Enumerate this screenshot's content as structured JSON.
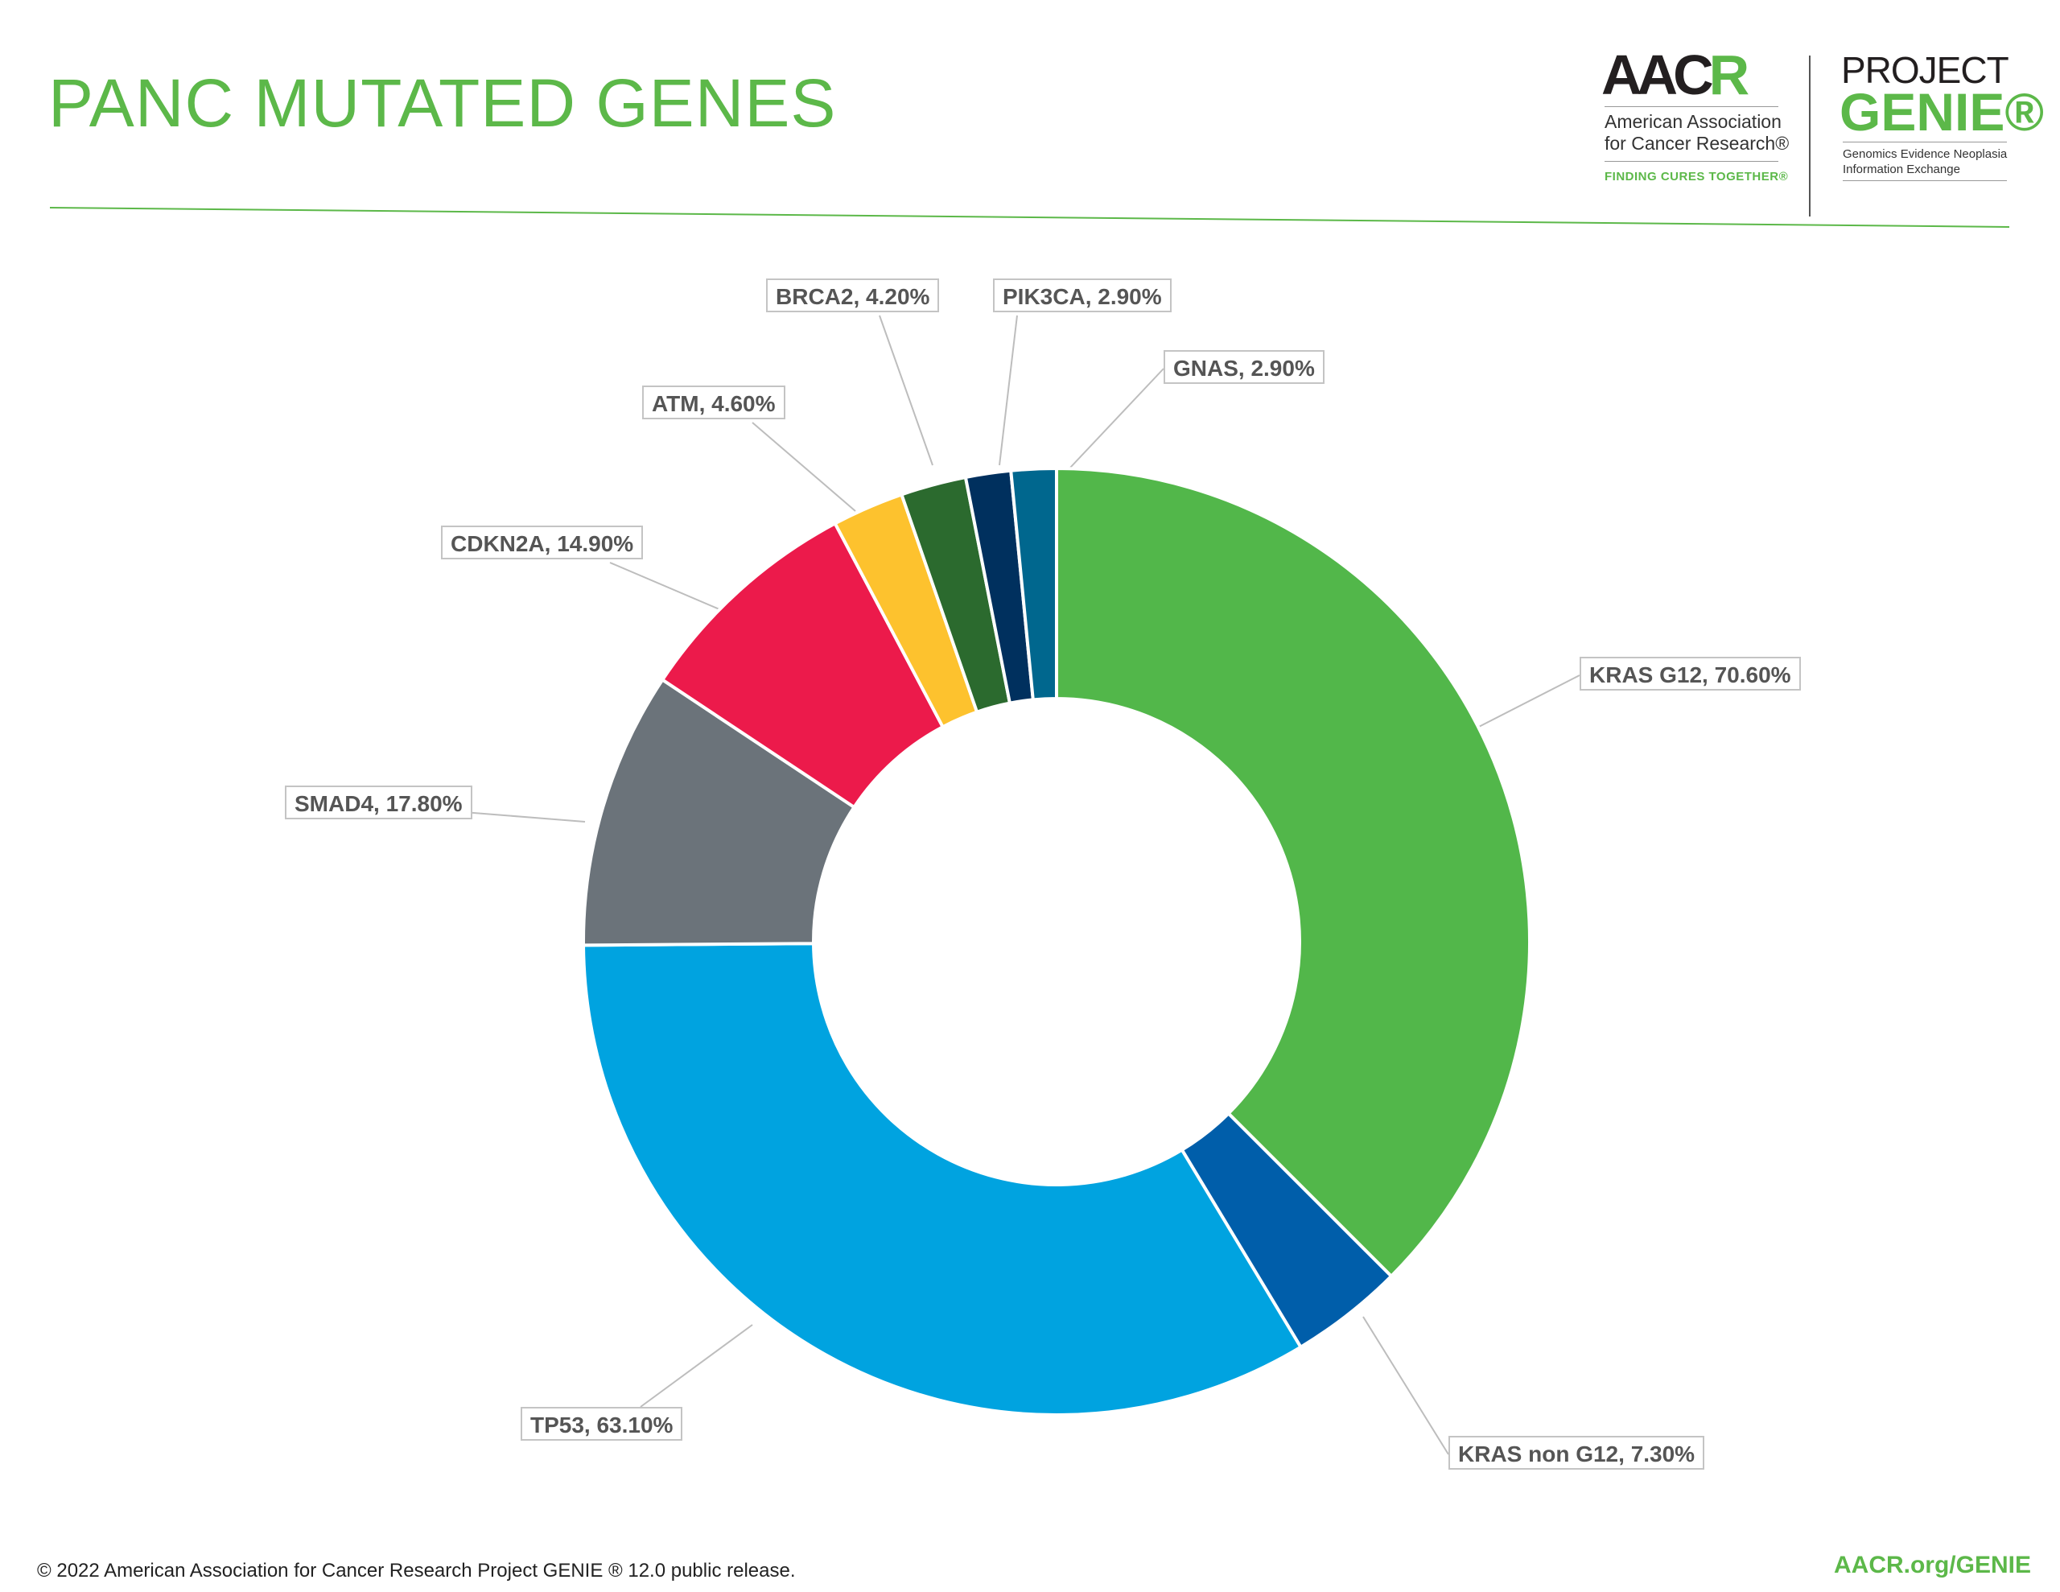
{
  "header": {
    "title": "PANC MUTATED GENES"
  },
  "logos": {
    "aacr_main": "AAC",
    "aacr_r": "R",
    "aacr_line1": "American Association",
    "aacr_line2": "for Cancer Research®",
    "aacr_tagline": "FINDING CURES TOGETHER®",
    "project": "PROJECT",
    "genie": "GENIE®",
    "genie_line1": "Genomics Evidence Neoplasia",
    "genie_line2": "Information Exchange"
  },
  "footer": {
    "copyright": "© 2022 American Association for Cancer Research Project GENIE ® 12.0 public release.",
    "url": "AACR.org/GENIE"
  },
  "chart_data": {
    "type": "pie",
    "variant": "donut",
    "title": "PANC MUTATED GENES",
    "categories": [
      "KRAS G12",
      "KRAS non G12",
      "TP53",
      "SMAD4",
      "CDKN2A",
      "ATM",
      "BRCA2",
      "PIK3CA",
      "GNAS"
    ],
    "values": [
      70.6,
      7.3,
      63.1,
      17.8,
      14.9,
      4.6,
      4.2,
      2.9,
      2.9
    ],
    "unit": "%",
    "data_labels": [
      "KRAS G12, 70.60%",
      "KRAS non G12, 7.30%",
      "TP53, 63.10%",
      "SMAD4, 17.80%",
      "CDKN2A, 14.90%",
      "ATM, 4.60%",
      "BRCA2, 4.20%",
      "PIK3CA, 2.90%",
      "GNAS, 2.90%"
    ],
    "colors": [
      "#52b74a",
      "#005eaa",
      "#00a3e0",
      "#6b737a",
      "#ec1a4b",
      "#fdc22e",
      "#2b6a2e",
      "#00305e",
      "#00678e"
    ],
    "start": "top",
    "direction": "clockwise",
    "legend": "none"
  }
}
